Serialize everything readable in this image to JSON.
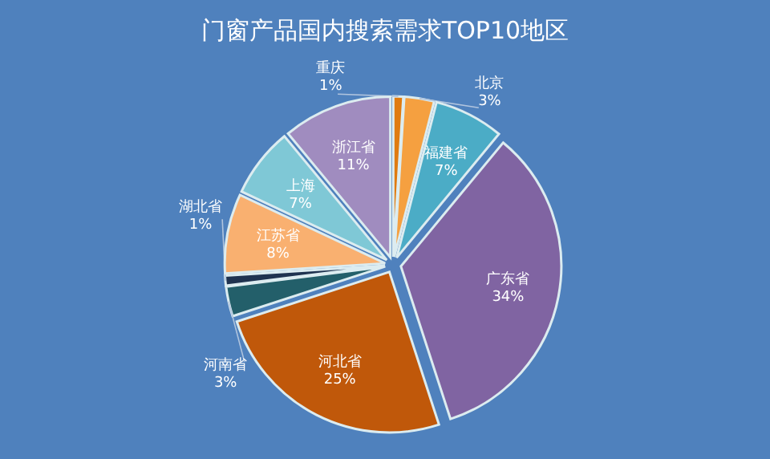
{
  "chart_data": {
    "type": "pie",
    "title": "门窗产品国内搜索需求TOP10地区",
    "categories": [
      "重庆",
      "北京",
      "福建省",
      "广东省",
      "河北省",
      "河南省",
      "湖北省",
      "江苏省",
      "上海",
      "浙江省"
    ],
    "values": [
      1,
      3,
      7,
      34,
      25,
      3,
      1,
      8,
      7,
      11
    ],
    "value_labels": [
      "1%",
      "3%",
      "7%",
      "34%",
      "25%",
      "3%",
      "1%",
      "8%",
      "7%",
      "11%"
    ],
    "colors": [
      "#e07b10",
      "#f5a040",
      "#4bacc6",
      "#8064a2",
      "#c0580a",
      "#235f6a",
      "#1f3350",
      "#f9b070",
      "#7fc8d6",
      "#a08cbf"
    ]
  }
}
